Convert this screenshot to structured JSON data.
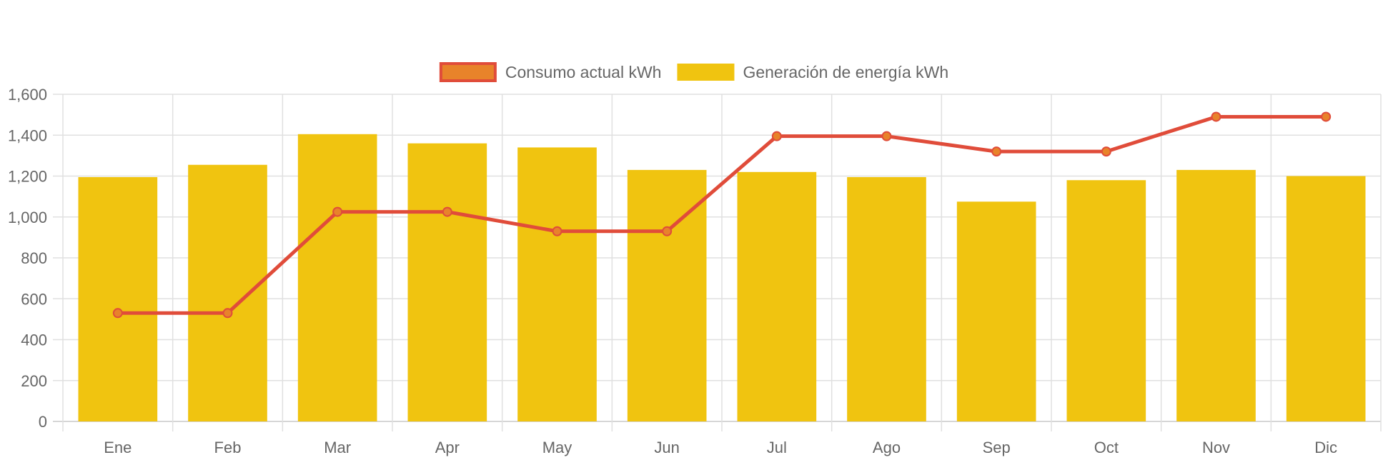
{
  "chart_data": {
    "type": "bar",
    "title": "",
    "xlabel": "",
    "ylabel": "",
    "categories": [
      "Ene",
      "Feb",
      "Mar",
      "Apr",
      "May",
      "Jun",
      "Jul",
      "Ago",
      "Sep",
      "Oct",
      "Nov",
      "Dic"
    ],
    "ylim": [
      0,
      1600
    ],
    "yticks": [
      0,
      200,
      400,
      600,
      800,
      1000,
      1200,
      1400,
      1600
    ],
    "ytick_labels": [
      "0",
      "200",
      "400",
      "600",
      "800",
      "1,000",
      "1,200",
      "1,400",
      "1,600"
    ],
    "grid": true,
    "legend_position": "top-center",
    "series": [
      {
        "name": "Consumo actual kWh",
        "type": "line",
        "color": "#e04c3a",
        "point_color": "#e8832a",
        "values": [
          530,
          530,
          1025,
          1025,
          930,
          930,
          1395,
          1395,
          1320,
          1320,
          1490,
          1490
        ]
      },
      {
        "name": "Generación de energía kWh",
        "type": "bar",
        "color": "#f0c410",
        "values": [
          1195,
          1255,
          1405,
          1360,
          1340,
          1230,
          1220,
          1195,
          1075,
          1180,
          1230,
          1200
        ]
      }
    ]
  }
}
